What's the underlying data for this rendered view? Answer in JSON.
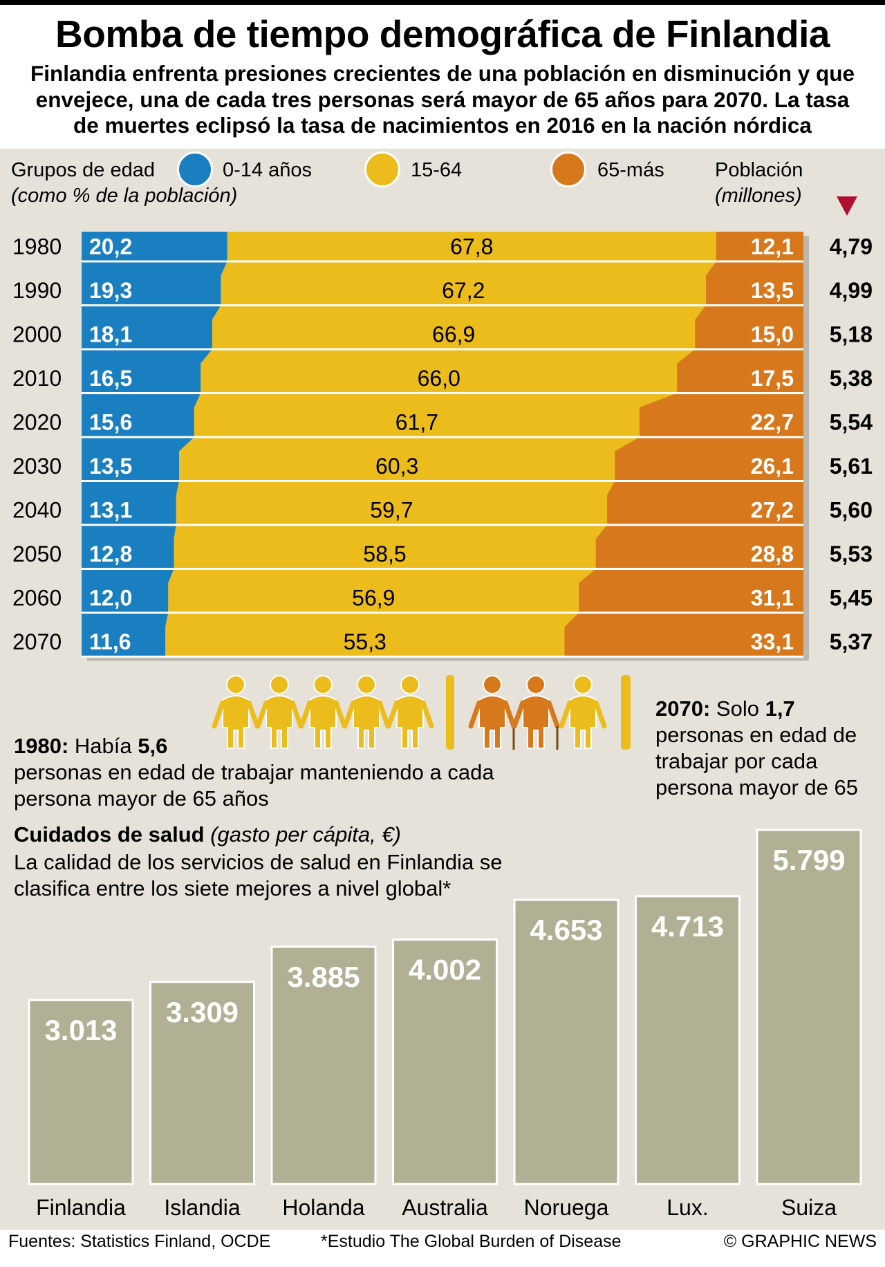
{
  "title": "Bomba de tiempo demográfica de Finlandia",
  "subtitle": "Finlandia enfrenta presiones crecientes de una población en disminución y que envejece, una de cada tres personas será mayor de 65 años para 2070. La tasa de muertes eclipsó la tasa de nacimientos en 2016 en la nación nórdica",
  "legend": {
    "group_title": "Grupos de edad",
    "group_subtitle": "(como % de la población)",
    "items": [
      {
        "label": "0-14 años",
        "color": "#1a7fc1"
      },
      {
        "label": "15-64",
        "color": "#ebbc1c"
      },
      {
        "label": "65-más",
        "color": "#d8781c"
      }
    ],
    "population_title": "Población",
    "population_subtitle": "(millones)"
  },
  "chart_data": [
    {
      "type": "bar",
      "stacked": true,
      "orientation": "horizontal",
      "categories": [
        "1980",
        "1990",
        "2000",
        "2010",
        "2020",
        "2030",
        "2040",
        "2050",
        "2060",
        "2070"
      ],
      "series": [
        {
          "name": "0-14 años",
          "values": [
            20.2,
            19.3,
            18.1,
            16.5,
            15.6,
            13.5,
            13.1,
            12.8,
            12.0,
            11.6
          ],
          "labels": [
            "20,2",
            "19,3",
            "18,1",
            "16,5",
            "15,6",
            "13,5",
            "13,1",
            "12,8",
            "12,0",
            "11,6"
          ]
        },
        {
          "name": "15-64",
          "values": [
            67.8,
            67.2,
            66.9,
            66.0,
            61.7,
            60.3,
            59.7,
            58.5,
            56.9,
            55.3
          ],
          "labels": [
            "67,8",
            "67,2",
            "66,9",
            "66,0",
            "61,7",
            "60,3",
            "59,7",
            "58,5",
            "56,9",
            "55,3"
          ]
        },
        {
          "name": "65-más",
          "values": [
            12.1,
            13.5,
            15.0,
            17.5,
            22.7,
            26.1,
            27.2,
            28.8,
            31.1,
            33.1
          ],
          "labels": [
            "12,1",
            "13,5",
            "15,0",
            "17,5",
            "22,7",
            "26,1",
            "27,2",
            "28,8",
            "31,1",
            "33,1"
          ]
        }
      ],
      "population_millions": [
        "4,79",
        "4,99",
        "5,18",
        "5,38",
        "5,54",
        "5,61",
        "5,60",
        "5,53",
        "5,45",
        "5,37"
      ]
    },
    {
      "type": "bar",
      "title": "Cuidados de salud",
      "title_note": "(gasto per cápita, €)",
      "categories": [
        "Finlandia",
        "Islandia",
        "Holanda",
        "Australia",
        "Noruega",
        "Lux.",
        "Suiza"
      ],
      "values": [
        3013,
        3309,
        3885,
        4002,
        4653,
        4713,
        5799
      ],
      "labels": [
        "3.013",
        "3.309",
        "3.885",
        "4.002",
        "4.653",
        "4.713",
        "5.799"
      ],
      "color": "#b1af94"
    }
  ],
  "notes": {
    "n1980_year": "1980:",
    "n1980_pre": " Había ",
    "n1980_num": "5,6",
    "n1980_rest": "personas en edad de trabajar manteniendo a cada persona mayor de 65 años",
    "n2070_year": "2070:",
    "n2070_pre": " Solo ",
    "n2070_num": "1,7",
    "n2070_rest": "personas en edad de trabajar por cada persona mayor de 65"
  },
  "health_note": "La calidad de los servicios de salud en Finlandia se clasifica entre los siete mejores a nivel global*",
  "footer": {
    "sources": "Fuentes: Statistics Finland, OCDE",
    "study": "*Estudio The Global Burden of Disease",
    "credit": "© GRAPHIC NEWS"
  }
}
